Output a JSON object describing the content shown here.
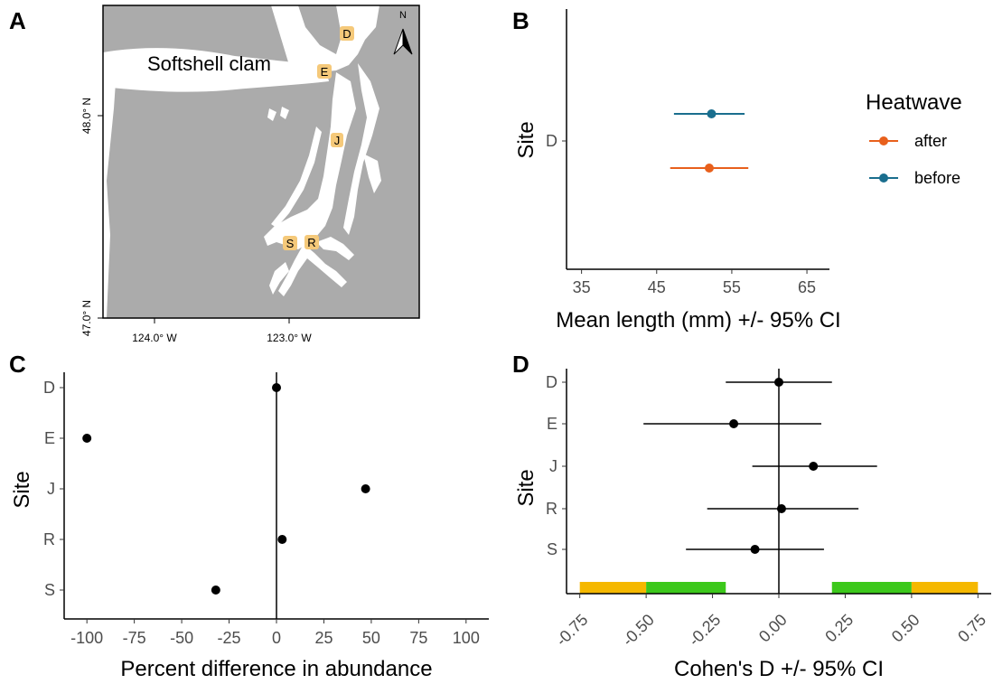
{
  "panels": {
    "a_label": "A",
    "b_label": "B",
    "c_label": "C",
    "d_label": "D"
  },
  "map": {
    "title": "Softshell clam",
    "lat_ticks": [
      "48.0° N",
      "47.0° N"
    ],
    "lon_ticks": [
      "124.0° W",
      "123.0° W"
    ],
    "north_label": "N",
    "sites": [
      "D",
      "E",
      "J",
      "S",
      "R"
    ],
    "colors": {
      "land": "#ababab",
      "water": "#ffffff",
      "site_bg": "#f5c97a"
    }
  },
  "chart_data": [
    {
      "panel": "B",
      "type": "scatter",
      "xlabel": "Mean length (mm) +/- 95% CI",
      "ylabel": "Site",
      "categories": [
        "D"
      ],
      "xlim": [
        33,
        68
      ],
      "xticks": [
        "35",
        "45",
        "55",
        "65"
      ],
      "legend_title": "Heatwave",
      "legend_position": "right",
      "series": [
        {
          "name": "after",
          "color": "#e8601c",
          "mean": 52,
          "lo": 46.8,
          "hi": 57.2
        },
        {
          "name": "before",
          "color": "#1a6e8e",
          "mean": 52.3,
          "lo": 47.3,
          "hi": 56.7
        }
      ]
    },
    {
      "panel": "C",
      "type": "scatter",
      "xlabel": "Percent difference in abundance",
      "ylabel": "Site",
      "categories": [
        "D",
        "E",
        "J",
        "R",
        "S"
      ],
      "xlim": [
        -112,
        112
      ],
      "xticks": [
        "-100",
        "-75",
        "-50",
        "-25",
        "0",
        "25",
        "50",
        "75",
        "100"
      ],
      "values": [
        0,
        -100,
        47,
        3,
        -32
      ],
      "reference_line": 0
    },
    {
      "panel": "D",
      "type": "scatter",
      "xlabel": "Cohen's D +/- 95% CI",
      "ylabel": "Site",
      "categories": [
        "D",
        "E",
        "J",
        "R",
        "S"
      ],
      "xlim": [
        -0.8,
        0.8
      ],
      "xticks": [
        "-0.75",
        "-0.50",
        "-0.25",
        "0.00",
        "0.25",
        "0.50",
        "0.75"
      ],
      "series": [
        {
          "name": "D",
          "mean": 0.0,
          "lo": -0.2,
          "hi": 0.2
        },
        {
          "name": "E",
          "mean": -0.17,
          "lo": -0.51,
          "hi": 0.16
        },
        {
          "name": "J",
          "mean": 0.13,
          "lo": -0.1,
          "hi": 0.37
        },
        {
          "name": "R",
          "mean": 0.01,
          "lo": -0.27,
          "hi": 0.3
        },
        {
          "name": "S",
          "mean": -0.09,
          "lo": -0.35,
          "hi": 0.17
        }
      ],
      "reference_line": 0,
      "bands": [
        {
          "from": -0.75,
          "to": -0.5,
          "color": "#f5b800"
        },
        {
          "from": -0.5,
          "to": -0.2,
          "color": "#3cc81b"
        },
        {
          "from": 0.2,
          "to": 0.5,
          "color": "#3cc81b"
        },
        {
          "from": 0.5,
          "to": 0.75,
          "color": "#f5b800"
        }
      ]
    }
  ]
}
